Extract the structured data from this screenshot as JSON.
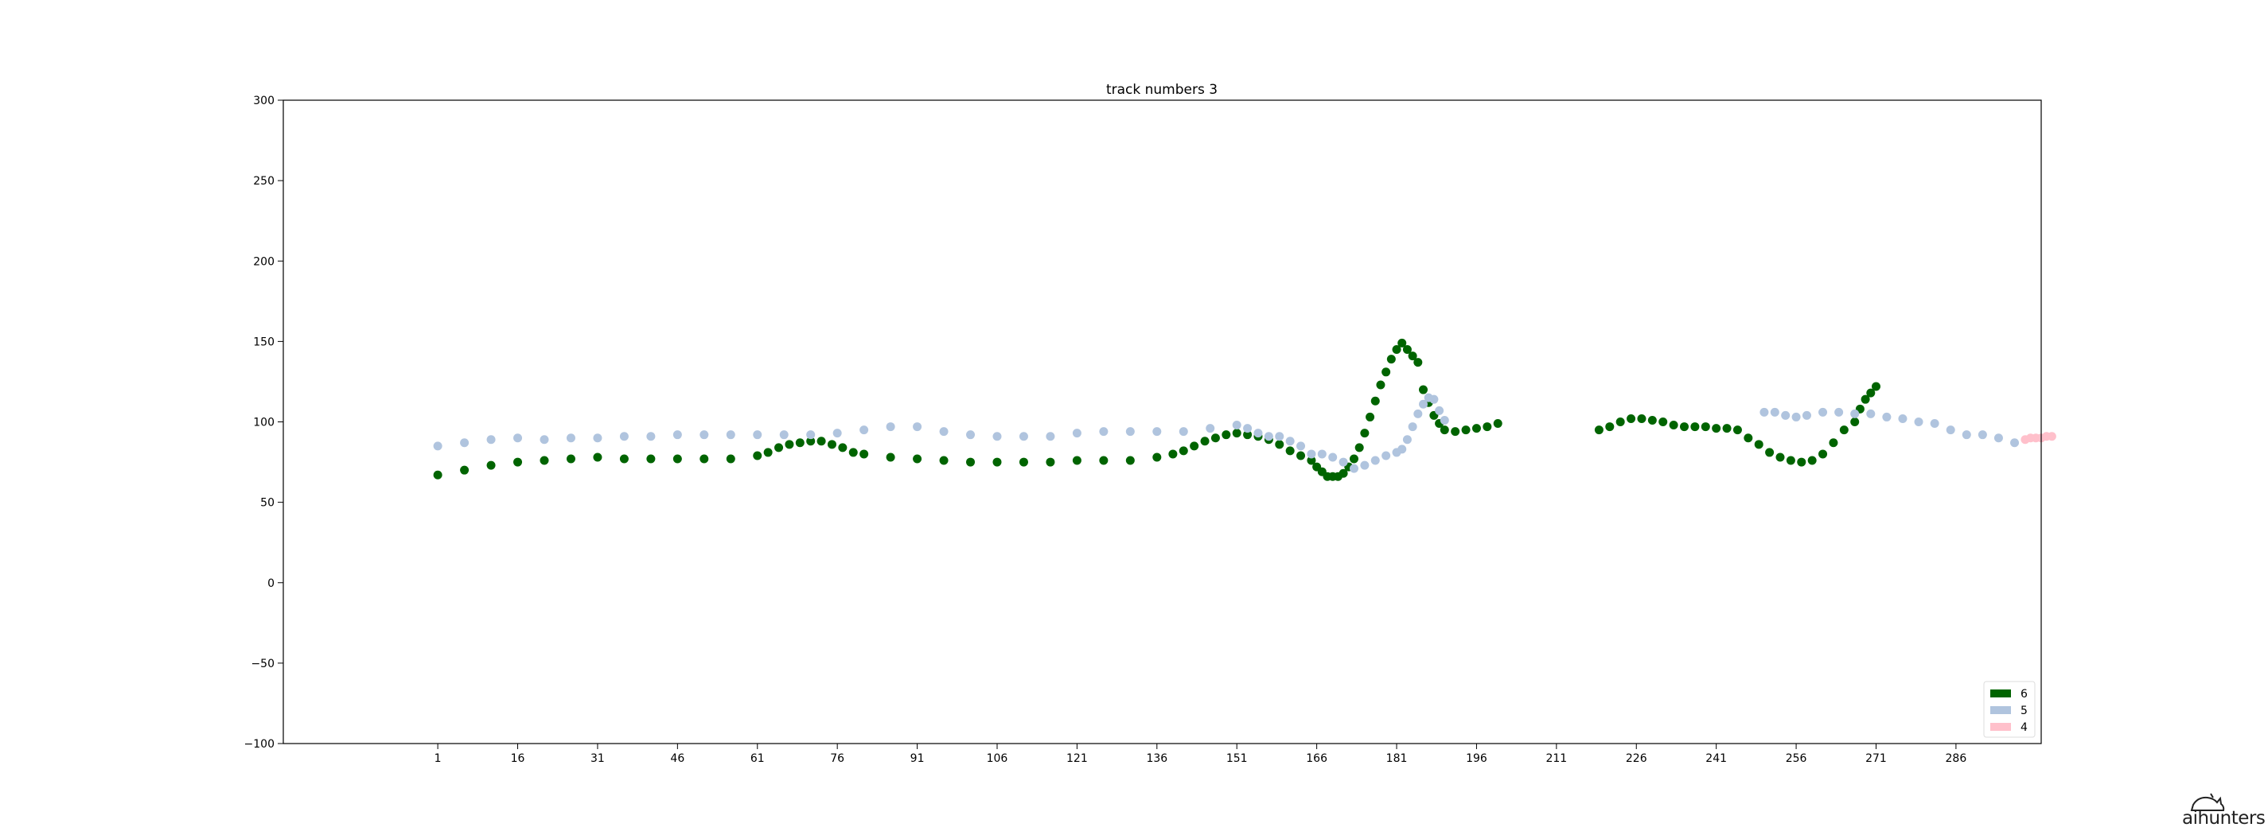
{
  "brand": {
    "logo_text": "aihunters",
    "logo_icon": "cat-logo-icon"
  },
  "chart_data": {
    "type": "scatter",
    "title": "track numbers 3",
    "xlabel": "",
    "ylabel": "",
    "xlim": [
      -28,
      302
    ],
    "ylim": [
      -100,
      300
    ],
    "x_ticks": [
      1,
      16,
      31,
      46,
      61,
      76,
      91,
      106,
      121,
      136,
      151,
      166,
      181,
      196,
      211,
      226,
      241,
      256,
      271,
      286
    ],
    "y_ticks": [
      -100,
      -50,
      0,
      50,
      100,
      150,
      200,
      250,
      300
    ],
    "grid": false,
    "legend": {
      "position": "lower-right"
    },
    "series": [
      {
        "name": "6",
        "color": "#006400",
        "segments": [
          {
            "x": [
              1,
              6,
              11,
              16,
              21,
              26,
              31,
              36,
              41,
              46,
              51,
              56,
              61,
              63,
              65,
              67,
              69,
              71,
              73,
              75,
              77,
              79,
              81,
              86,
              91,
              96,
              101,
              106,
              111,
              116,
              121,
              126,
              131,
              136,
              139,
              141,
              143,
              145,
              147,
              149,
              151,
              153,
              155,
              157,
              159,
              161,
              163,
              165,
              166,
              167,
              168,
              169,
              170,
              171,
              172,
              173,
              174,
              175,
              176,
              177,
              178,
              179,
              180,
              181,
              182,
              183,
              184,
              185,
              186,
              187,
              188,
              189,
              190,
              192,
              194,
              196,
              198,
              200
            ],
            "y": [
              67,
              70,
              73,
              75,
              76,
              77,
              78,
              77,
              77,
              77,
              77,
              77,
              79,
              81,
              84,
              86,
              87,
              88,
              88,
              86,
              84,
              81,
              80,
              78,
              77,
              76,
              75,
              75,
              75,
              75,
              76,
              76,
              76,
              78,
              80,
              82,
              85,
              88,
              90,
              92,
              93,
              92,
              91,
              89,
              86,
              82,
              79,
              76,
              72,
              69,
              66,
              66,
              66,
              68,
              72,
              77,
              84,
              93,
              103,
              113,
              123,
              131,
              139,
              145,
              149,
              145,
              141,
              137,
              120,
              112,
              104,
              99,
              95,
              94,
              95,
              96,
              97,
              99
            ]
          },
          {
            "x": [
              219,
              221,
              223,
              225,
              227,
              229,
              231,
              233,
              235,
              237,
              239,
              241,
              243,
              245,
              247,
              249,
              251,
              253,
              255,
              257,
              259,
              261,
              263,
              265,
              267
            ],
            "y": [
              95,
              97,
              100,
              102,
              102,
              101,
              100,
              98,
              97,
              97,
              97,
              96,
              96,
              95,
              90,
              86,
              81,
              78,
              76,
              75,
              76,
              80,
              87,
              95,
              100
            ]
          },
          {
            "x": [
              268,
              269,
              270,
              271
            ],
            "y": [
              108,
              114,
              118,
              122
            ]
          }
        ]
      },
      {
        "name": "5",
        "color": "#b0c4de",
        "segments": [
          {
            "x": [
              1,
              6,
              11,
              16,
              21,
              26,
              31,
              36,
              41,
              46,
              51,
              56,
              61,
              66,
              71,
              76,
              81,
              86,
              91,
              96,
              101,
              106,
              111,
              116,
              121,
              126,
              131,
              136,
              141,
              146,
              151,
              153,
              155,
              157,
              159,
              161,
              163,
              165,
              167,
              169,
              171,
              173,
              175,
              177,
              179,
              181,
              182,
              183,
              184,
              185,
              186,
              187,
              188,
              189,
              190
            ],
            "y": [
              85,
              87,
              89,
              90,
              89,
              90,
              90,
              91,
              91,
              92,
              92,
              92,
              92,
              92,
              92,
              93,
              95,
              97,
              97,
              94,
              92,
              91,
              91,
              91,
              93,
              94,
              94,
              94,
              94,
              96,
              98,
              96,
              93,
              91,
              91,
              88,
              85,
              80,
              80,
              78,
              75,
              71,
              73,
              76,
              79,
              81,
              83,
              89,
              97,
              105,
              111,
              115,
              114,
              107,
              101
            ]
          },
          {
            "x": [
              250,
              252,
              254,
              256,
              258,
              261,
              264,
              267,
              270,
              273,
              276,
              279,
              282,
              285,
              288,
              291,
              294,
              297
            ],
            "y": [
              106,
              106,
              104,
              103,
              104,
              106,
              106,
              105,
              105,
              103,
              102,
              100,
              99,
              95,
              92,
              92,
              90,
              87
            ]
          }
        ]
      },
      {
        "name": "4",
        "color": "#ffc0cb",
        "segments": [
          {
            "x": [
              299,
              300,
              301,
              302,
              303,
              304
            ],
            "y": [
              89,
              90,
              90,
              90,
              91,
              91
            ]
          }
        ]
      }
    ]
  }
}
